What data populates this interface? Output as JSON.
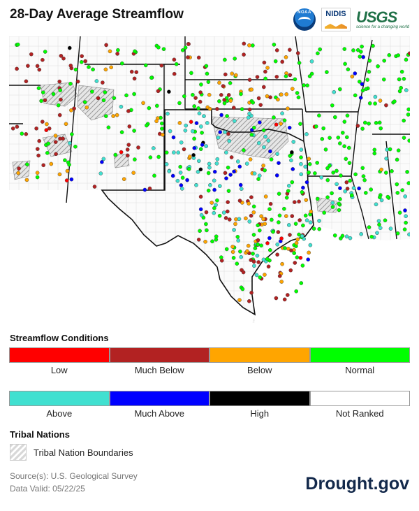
{
  "title": "28-Day Average Streamflow",
  "logos": {
    "noaa": "NOAA",
    "nidis": "NIDIS",
    "usgs": "USGS",
    "usgs_tagline": "science for a changing world"
  },
  "legend": {
    "streamflow_heading": "Streamflow Conditions",
    "row1": [
      {
        "label": "Low",
        "color": "#ff0000"
      },
      {
        "label": "Much Below",
        "color": "#b22222"
      },
      {
        "label": "Below",
        "color": "#ffa500"
      },
      {
        "label": "Normal",
        "color": "#00ff00"
      }
    ],
    "row2": [
      {
        "label": "Above",
        "color": "#40e0d0"
      },
      {
        "label": "Much Above",
        "color": "#0000ff"
      },
      {
        "label": "High",
        "color": "#000000"
      },
      {
        "label": "Not Ranked",
        "color": "#ffffff"
      }
    ],
    "tribal_heading": "Tribal Nations",
    "tribal_label": "Tribal Nation Boundaries"
  },
  "source_line": "Source(s): U.S. Geological Survey",
  "valid_line": "Data Valid: 05/22/25",
  "brand": "Drought.gov"
}
